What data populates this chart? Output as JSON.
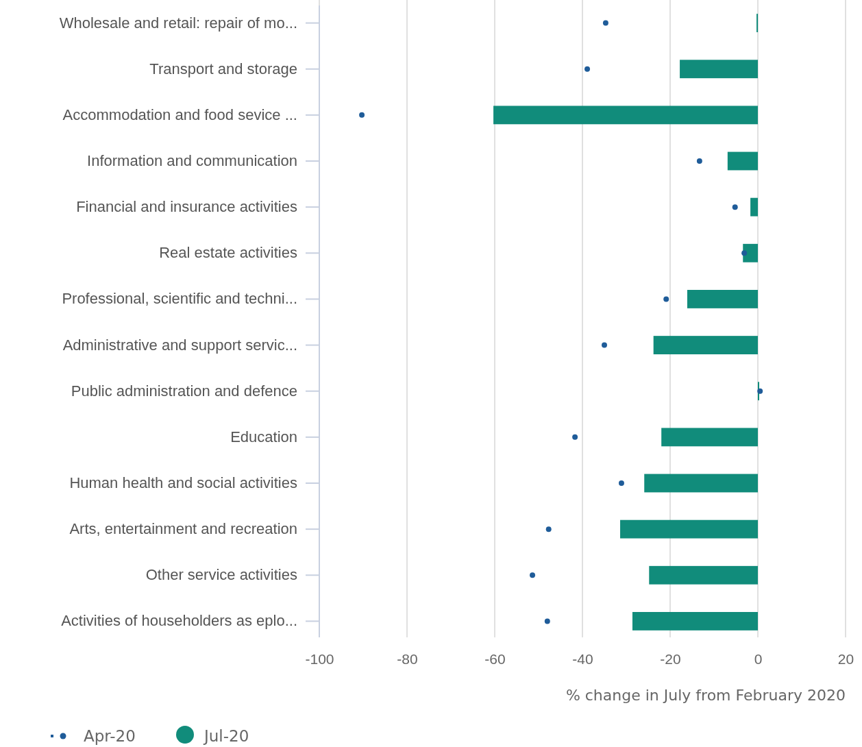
{
  "chart_data": {
    "type": "bar",
    "orientation": "horizontal",
    "categories": [
      "Wholesale and retail: repair of mo...",
      "Transport and storage",
      "Accommodation and food sevice ...",
      "Information and communication",
      "Financial and insurance activities",
      "Real estate activities",
      "Professional, scientific and techni...",
      "Administrative and support servic...",
      "Public administration and defence",
      "Education",
      "Human health and social activities",
      "Arts, entertainment and recreation",
      "Other service activities",
      "Activities of householders as eplo..."
    ],
    "series": [
      {
        "name": "Apr-20",
        "type": "scatter",
        "color": "#1f5c99",
        "values": [
          -34.7,
          -38.9,
          -90.3,
          -13.3,
          -5.2,
          -3.1,
          -20.9,
          -35.0,
          0.5,
          -41.7,
          -31.1,
          -47.7,
          -51.4,
          -48.0
        ]
      },
      {
        "name": "Jul-20",
        "color": "#118c7b",
        "values": [
          -0.3,
          -17.8,
          -60.3,
          -6.9,
          -1.7,
          -3.4,
          -16.1,
          -23.8,
          0.3,
          -22.0,
          -25.9,
          -31.4,
          -24.8,
          -28.6
        ]
      }
    ],
    "xlabel": "% change in July from February 2020",
    "xlim": [
      -100,
      20
    ],
    "xticks": [
      -100,
      -80,
      -60,
      -40,
      -20,
      0,
      20
    ],
    "grid": "x",
    "legend": "bottom left",
    "marker": "circle"
  }
}
